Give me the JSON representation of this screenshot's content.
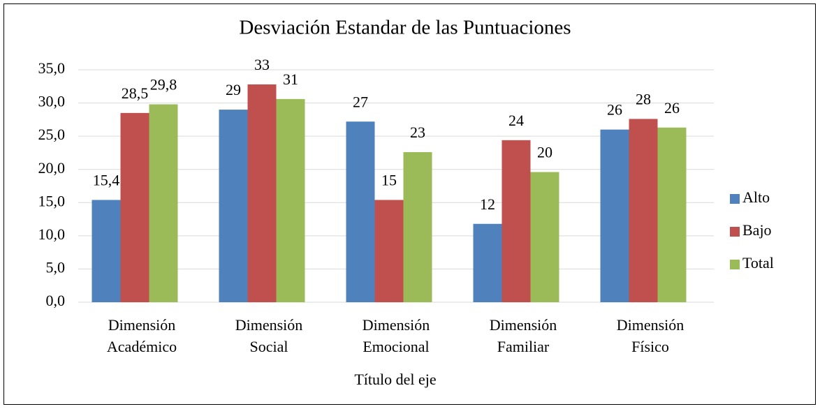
{
  "chart_data": {
    "type": "bar",
    "title": "Desviación Estandar de las Puntuaciones",
    "x_label": "Título del eje",
    "categories": [
      [
        "Dimensión",
        "Académico"
      ],
      [
        "Dimensión",
        "Social"
      ],
      [
        "Dimensión",
        "Emocional"
      ],
      [
        "Dimensión",
        "Familiar"
      ],
      [
        "Dimensión",
        "Físico"
      ]
    ],
    "series": [
      {
        "name": "Alto",
        "color": "#4f81bd",
        "values": [
          15.4,
          29.0,
          27.2,
          11.8,
          26.0
        ],
        "value_labels": [
          "15,4",
          "29",
          "27",
          "12",
          "26"
        ]
      },
      {
        "name": "Bajo",
        "color": "#c0504d",
        "values": [
          28.5,
          32.8,
          15.4,
          24.4,
          27.6
        ],
        "value_labels": [
          "28,5",
          "33",
          "15",
          "24",
          "28"
        ]
      },
      {
        "name": "Total",
        "color": "#9bbb59",
        "values": [
          29.8,
          30.6,
          22.6,
          19.6,
          26.3
        ],
        "value_labels": [
          "29,8",
          "31",
          "23",
          "20",
          "26"
        ]
      }
    ],
    "ylim": [
      0,
      35
    ],
    "yticks": [
      {
        "value": 0,
        "label": "0,0"
      },
      {
        "value": 5,
        "label": "5,0"
      },
      {
        "value": 10,
        "label": "10,0"
      },
      {
        "value": 15,
        "label": "15,0"
      },
      {
        "value": 20,
        "label": "20,0"
      },
      {
        "value": 25,
        "label": "25,0"
      },
      {
        "value": 30,
        "label": "30,0"
      },
      {
        "value": 35,
        "label": "35,0"
      }
    ],
    "grid": true,
    "legend": "right"
  }
}
